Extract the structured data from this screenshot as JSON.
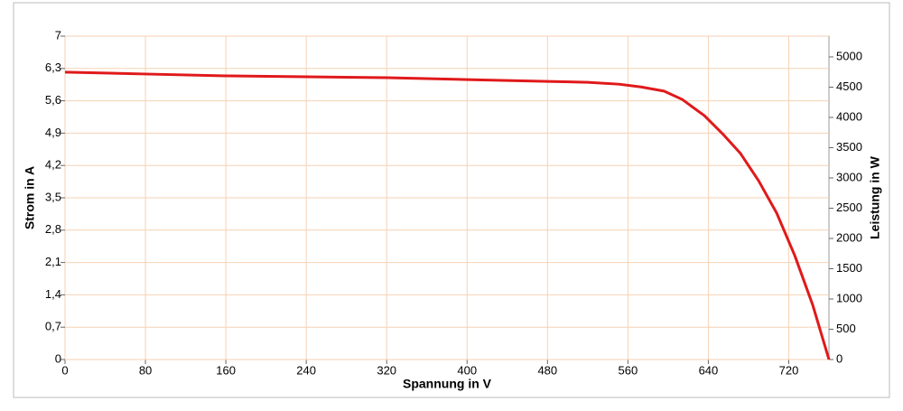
{
  "chart_data": {
    "type": "line",
    "xlabel": "Spannung in V",
    "ylabel": "Strom in A",
    "y2label": "Leistung in W",
    "x": [
      0,
      80,
      160,
      240,
      320,
      400,
      480,
      520,
      551,
      573,
      596,
      614,
      636,
      654,
      672,
      690,
      708,
      726,
      744,
      760
    ],
    "values": [
      6.22,
      6.18,
      6.14,
      6.12,
      6.1,
      6.06,
      6.02,
      6.0,
      5.96,
      5.9,
      5.81,
      5.63,
      5.28,
      4.89,
      4.46,
      3.87,
      3.17,
      2.25,
      1.17,
      0
    ],
    "color": "#e0191b",
    "xlim": [
      0,
      760
    ],
    "xticks": [
      0,
      80,
      160,
      240,
      320,
      400,
      480,
      560,
      640,
      720
    ],
    "ylim": [
      0,
      7
    ],
    "yticks": [
      0,
      {
        "value": 0.7,
        "label": "0,7"
      },
      {
        "value": 1.4,
        "label": "1,4"
      },
      {
        "value": 2.1,
        "label": "2,1"
      },
      {
        "value": 2.8,
        "label": "2,8"
      },
      {
        "value": 3.5,
        "label": "3,5"
      },
      {
        "value": 4.2,
        "label": "4,2"
      },
      {
        "value": 4.9,
        "label": "4,9"
      },
      {
        "value": 5.6,
        "label": "5,6"
      },
      {
        "value": 6.3,
        "label": "6,3"
      },
      7
    ],
    "y2lim": [
      0,
      5343
    ],
    "y2ticks": [
      0,
      500,
      1000,
      1500,
      2000,
      2500,
      3000,
      3500,
      4000,
      4500,
      5000
    ],
    "grid": true,
    "grid_color": "#f6d2b4"
  }
}
